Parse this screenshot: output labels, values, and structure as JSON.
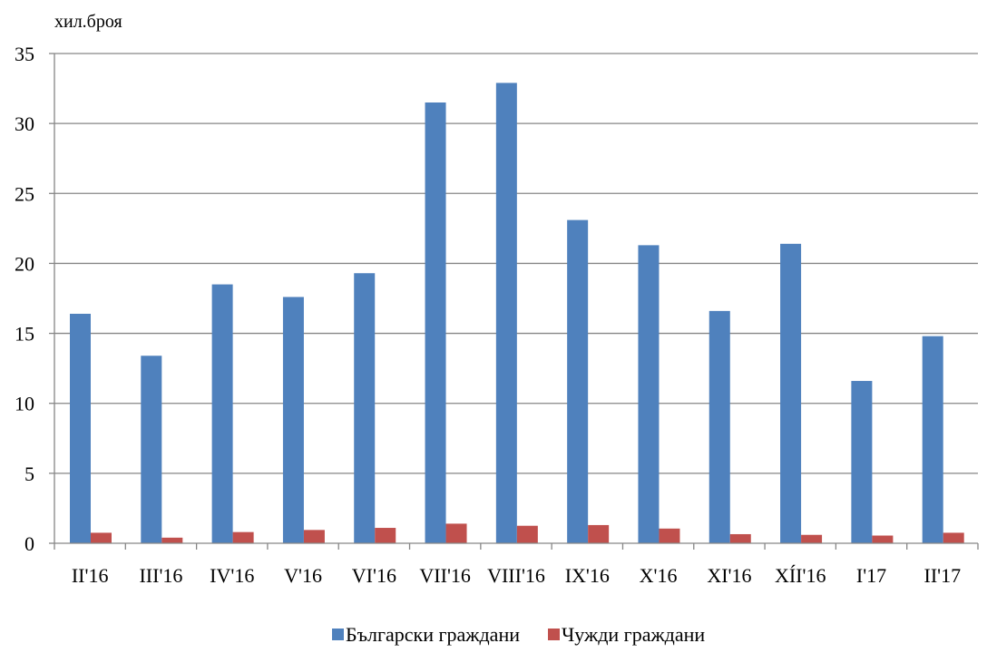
{
  "chart_data": {
    "type": "bar",
    "title": "",
    "ylabel": "хил.броя",
    "xlabel": "",
    "ylim": [
      0,
      35
    ],
    "yticks": [
      0,
      5,
      10,
      15,
      20,
      25,
      30,
      35
    ],
    "grid": true,
    "legend_position": "bottom",
    "categories": [
      "II'16",
      "III'16",
      "IV'16",
      "V'16",
      "VI'16",
      "VII'16",
      "VIII'16",
      "IX'16",
      "X'16",
      "XI'16",
      "XÍI'16",
      "I'17",
      "II'17"
    ],
    "series": [
      {
        "name": "Български граждани",
        "color": "#4F81BD",
        "values": [
          16.4,
          13.4,
          18.5,
          17.6,
          19.3,
          31.5,
          32.9,
          23.1,
          21.3,
          16.6,
          21.4,
          11.6,
          14.8
        ]
      },
      {
        "name": "Чужди граждани",
        "color": "#C0504D",
        "values": [
          0.75,
          0.4,
          0.8,
          0.95,
          1.1,
          1.4,
          1.25,
          1.3,
          1.05,
          0.65,
          0.6,
          0.55,
          0.75
        ]
      }
    ]
  }
}
